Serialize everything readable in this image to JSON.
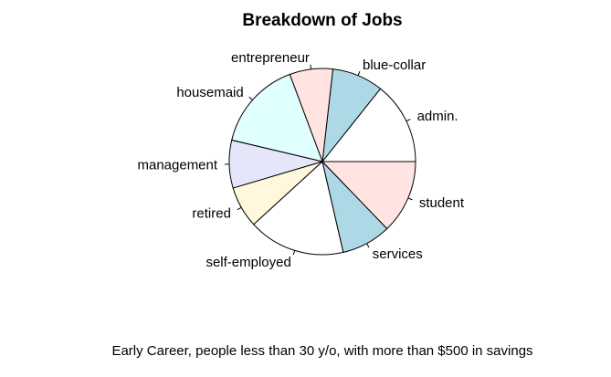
{
  "chart_data": {
    "type": "pie",
    "title": "Breakdown of Jobs",
    "caption": "Early Career, people less than 30 y/o, with more than $500 in savings",
    "direction": "counterclockwise",
    "start": "right",
    "slices": [
      {
        "label": "admin.",
        "percent": 14.3,
        "color": "#ffffff"
      },
      {
        "label": "blue-collar",
        "percent": 8.9,
        "color": "#add8e6"
      },
      {
        "label": "entrepreneur",
        "percent": 7.5,
        "color": "#ffe4e1"
      },
      {
        "label": "housemaid",
        "percent": 15.6,
        "color": "#e0ffff"
      },
      {
        "label": "management",
        "percent": 8.3,
        "color": "#e6e6fa"
      },
      {
        "label": "retired",
        "percent": 7.2,
        "color": "#fff8dc"
      },
      {
        "label": "self-employed",
        "percent": 16.8,
        "color": "#ffffff"
      },
      {
        "label": "services",
        "percent": 8.6,
        "color": "#add8e6"
      },
      {
        "label": "student",
        "percent": 12.8,
        "color": "#ffe4e1"
      }
    ]
  }
}
